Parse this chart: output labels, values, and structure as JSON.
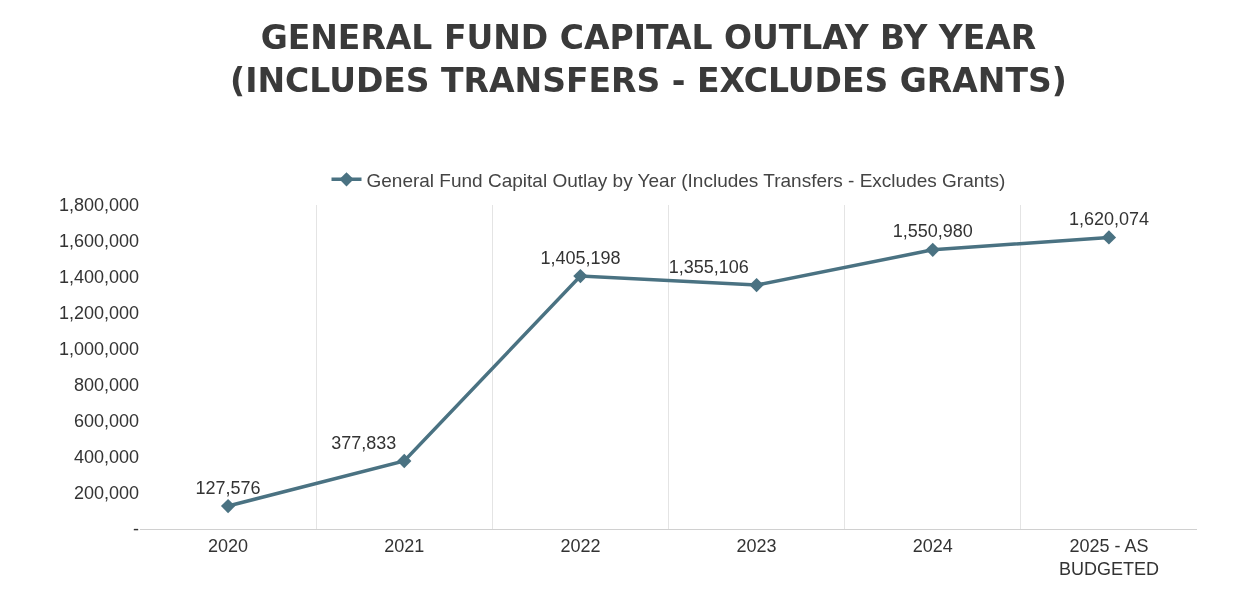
{
  "chart_data": {
    "type": "line",
    "title": "GENERAL FUND CAPITAL OUTLAY BY YEAR\n(INCLUDES TRANSFERS - EXCLUDES GRANTS)",
    "categories": [
      "2020",
      "2021",
      "2022",
      "2023",
      "2024",
      "2025 - AS\nBUDGETED"
    ],
    "series": [
      {
        "name": "General Fund Capital Outlay by Year (Includes Transfers - Excludes Grants)",
        "color": "#4a7282",
        "values": [
          127576,
          377833,
          1405198,
          1355106,
          1550980,
          1620074
        ],
        "value_labels": [
          "127,576",
          "377,833",
          "1,405,198",
          "1,355,106",
          "1,550,980",
          "1,620,074"
        ]
      }
    ],
    "ylim": [
      0,
      1800000
    ],
    "yticks": [
      {
        "value": 0,
        "label": "-"
      },
      {
        "value": 200000,
        "label": "200,000"
      },
      {
        "value": 400000,
        "label": "400,000"
      },
      {
        "value": 600000,
        "label": "600,000"
      },
      {
        "value": 800000,
        "label": "800,000"
      },
      {
        "value": 1000000,
        "label": "1,000,000"
      },
      {
        "value": 1200000,
        "label": "1,200,000"
      },
      {
        "value": 1400000,
        "label": "1,400,000"
      },
      {
        "value": 1600000,
        "label": "1,600,000"
      },
      {
        "value": 1800000,
        "label": "1,800,000"
      }
    ],
    "grid": "x",
    "legend": "top",
    "marker": "diamond",
    "line_style": "solid"
  }
}
